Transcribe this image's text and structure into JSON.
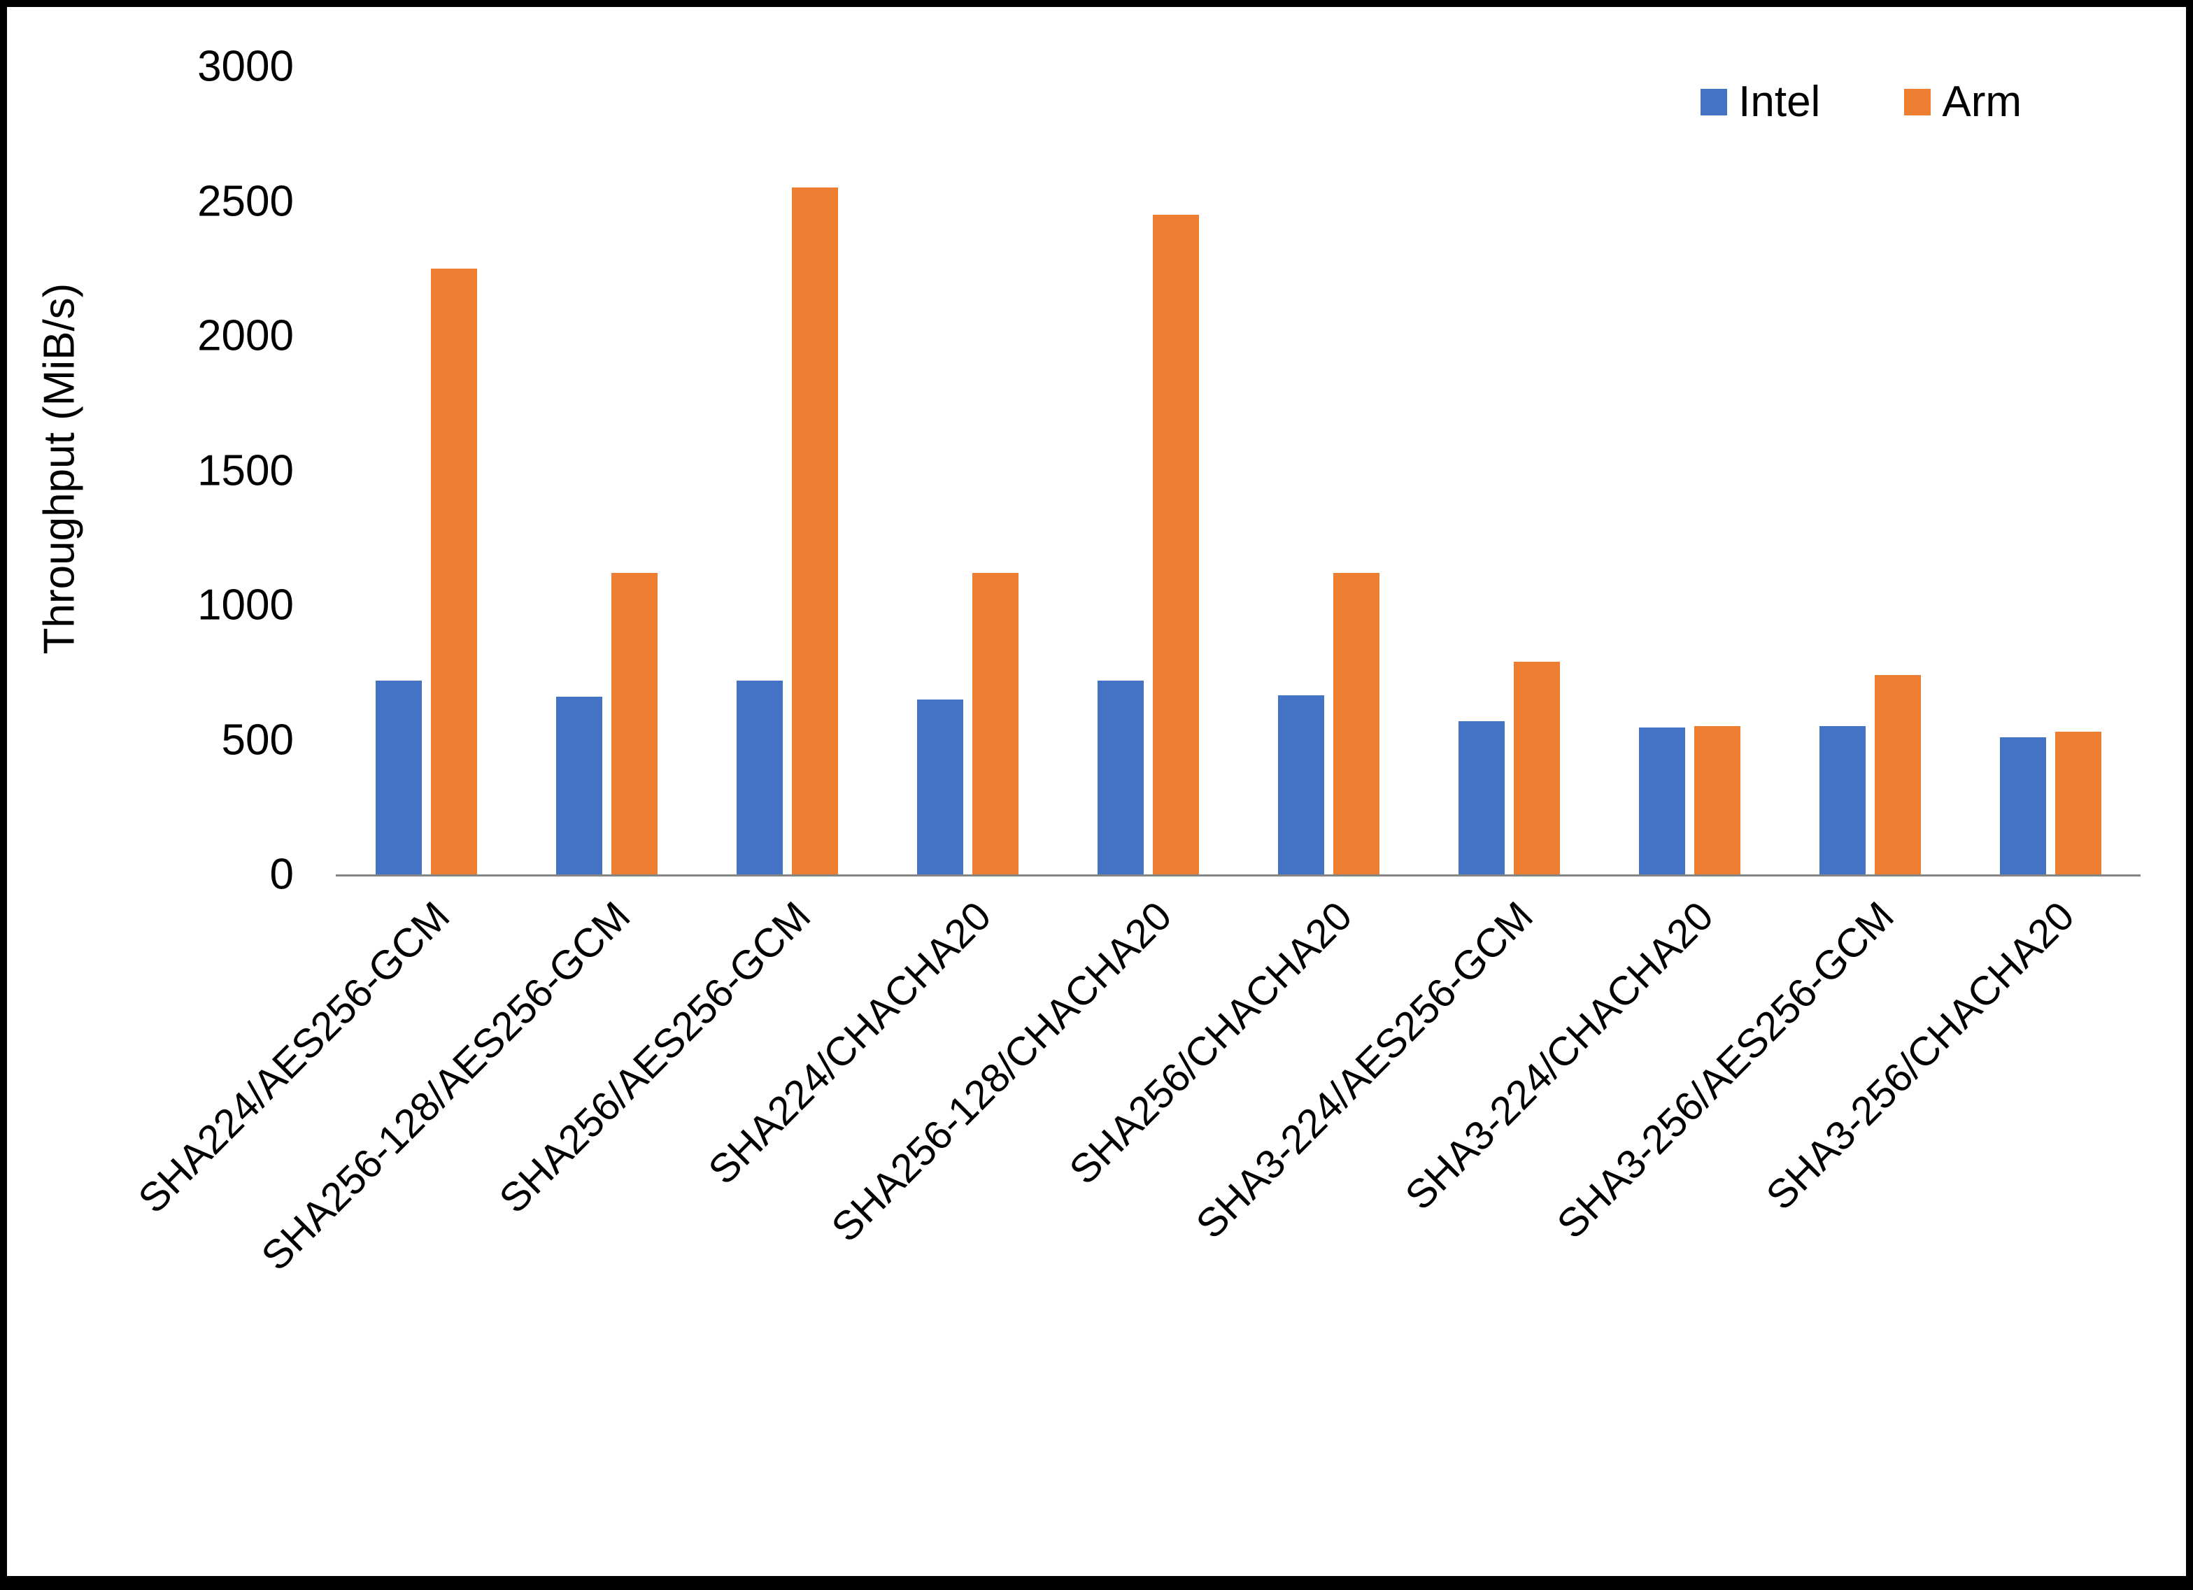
{
  "chart_data": {
    "type": "bar",
    "title": "",
    "xlabel": "",
    "ylabel": "Throughput (MiB/s)",
    "ylim": [
      0,
      3000
    ],
    "yticks": [
      0,
      500,
      1000,
      1500,
      2000,
      2500,
      3000
    ],
    "grid": false,
    "legend_position": "top-right",
    "categories": [
      "SHA224/AES256-GCM",
      "SHA256-128/AES256-GCM",
      "SHA256/AES256-GCM",
      "SHA224/CHACHA20",
      "SHA256-128/CHACHA20",
      "SHA256/CHACHA20",
      "SHA3-224/AES256-GCM",
      "SHA3-224/CHACHA20",
      "SHA3-256/AES256-GCM",
      "SHA3-256/CHACHA20"
    ],
    "series": [
      {
        "name": "Intel",
        "color": "#4472C4",
        "values": [
          720,
          660,
          720,
          650,
          720,
          665,
          570,
          545,
          550,
          510
        ]
      },
      {
        "name": "Arm",
        "color": "#ED7D31",
        "values": [
          2250,
          1120,
          2550,
          1120,
          2450,
          1120,
          790,
          550,
          740,
          530
        ]
      }
    ]
  }
}
